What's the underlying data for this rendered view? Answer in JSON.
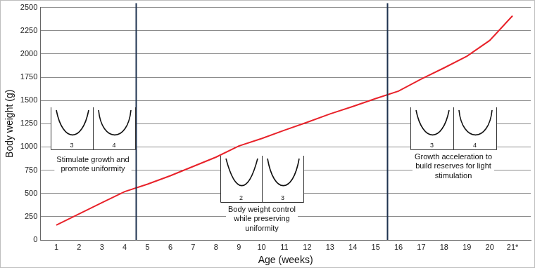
{
  "chart_data": {
    "type": "line",
    "x": [
      1,
      2,
      3,
      4,
      5,
      6,
      7,
      8,
      9,
      10,
      11,
      12,
      13,
      14,
      15,
      16,
      17,
      18,
      19,
      20,
      21
    ],
    "values": [
      160,
      280,
      400,
      520,
      600,
      690,
      790,
      890,
      1010,
      1090,
      1180,
      1265,
      1355,
      1435,
      1520,
      1600,
      1730,
      1850,
      1975,
      2145,
      2410
    ],
    "color": "#e8222a",
    "xlim": [
      0.3,
      21.8
    ],
    "xticks": [
      1,
      2,
      3,
      4,
      5,
      6,
      7,
      8,
      9,
      10,
      11,
      12,
      13,
      14,
      15,
      16,
      17,
      18,
      19,
      20,
      {
        "value": 21,
        "label": "21*"
      }
    ],
    "ylim": [
      0,
      2500
    ],
    "yticks": [
      0,
      250,
      500,
      750,
      1000,
      1250,
      1500,
      1750,
      2000,
      2250,
      2500
    ],
    "grid": true,
    "x_label": "Age (weeks)",
    "y_label": "Body weight (g)",
    "boundaries": [
      4.5,
      15.5
    ],
    "phases": [
      {
        "text": [
          "Stimulate growth and",
          "promote uniformity"
        ],
        "icons": [
          3,
          4
        ]
      },
      {
        "text": [
          "Body weight control",
          "while preserving",
          "uniformity"
        ],
        "icons": [
          2,
          3
        ]
      },
      {
        "text": [
          "Growth acceleration to",
          "build reserves for light",
          "stimulation"
        ],
        "icons": [
          3,
          4
        ]
      }
    ]
  }
}
